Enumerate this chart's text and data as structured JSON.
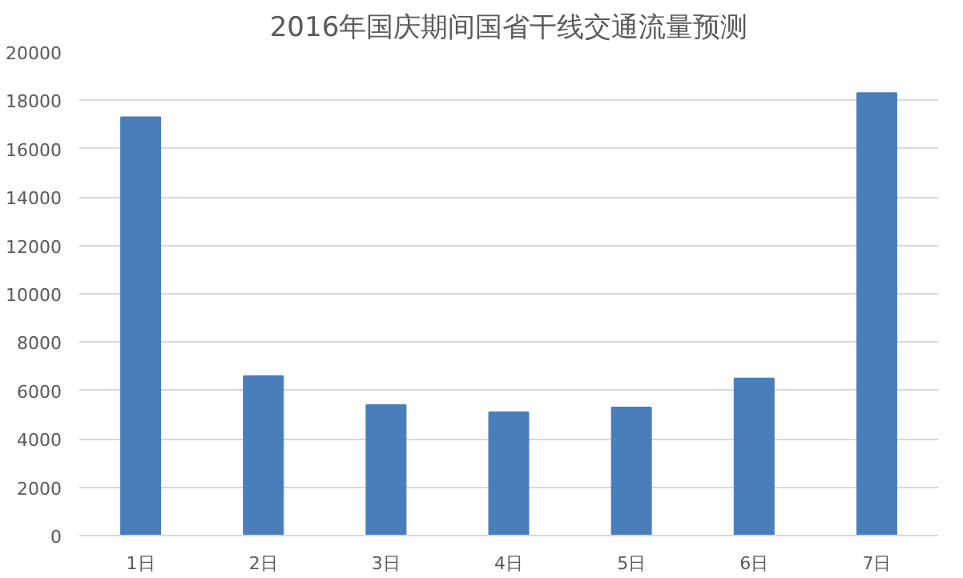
{
  "chart_data": {
    "type": "bar",
    "title": "2016年国庆期间国省干线交通流量预测",
    "categories": [
      "1日",
      "2日",
      "3日",
      "4日",
      "5日",
      "6日",
      "7日"
    ],
    "values": [
      17300,
      6600,
      5400,
      5100,
      5300,
      6500,
      18300
    ],
    "color": "#4a7ebb",
    "ylim": [
      0,
      20000
    ],
    "yticks": [
      0,
      2000,
      4000,
      6000,
      8000,
      10000,
      12000,
      14000,
      16000,
      18000,
      20000
    ],
    "grid": "y"
  }
}
